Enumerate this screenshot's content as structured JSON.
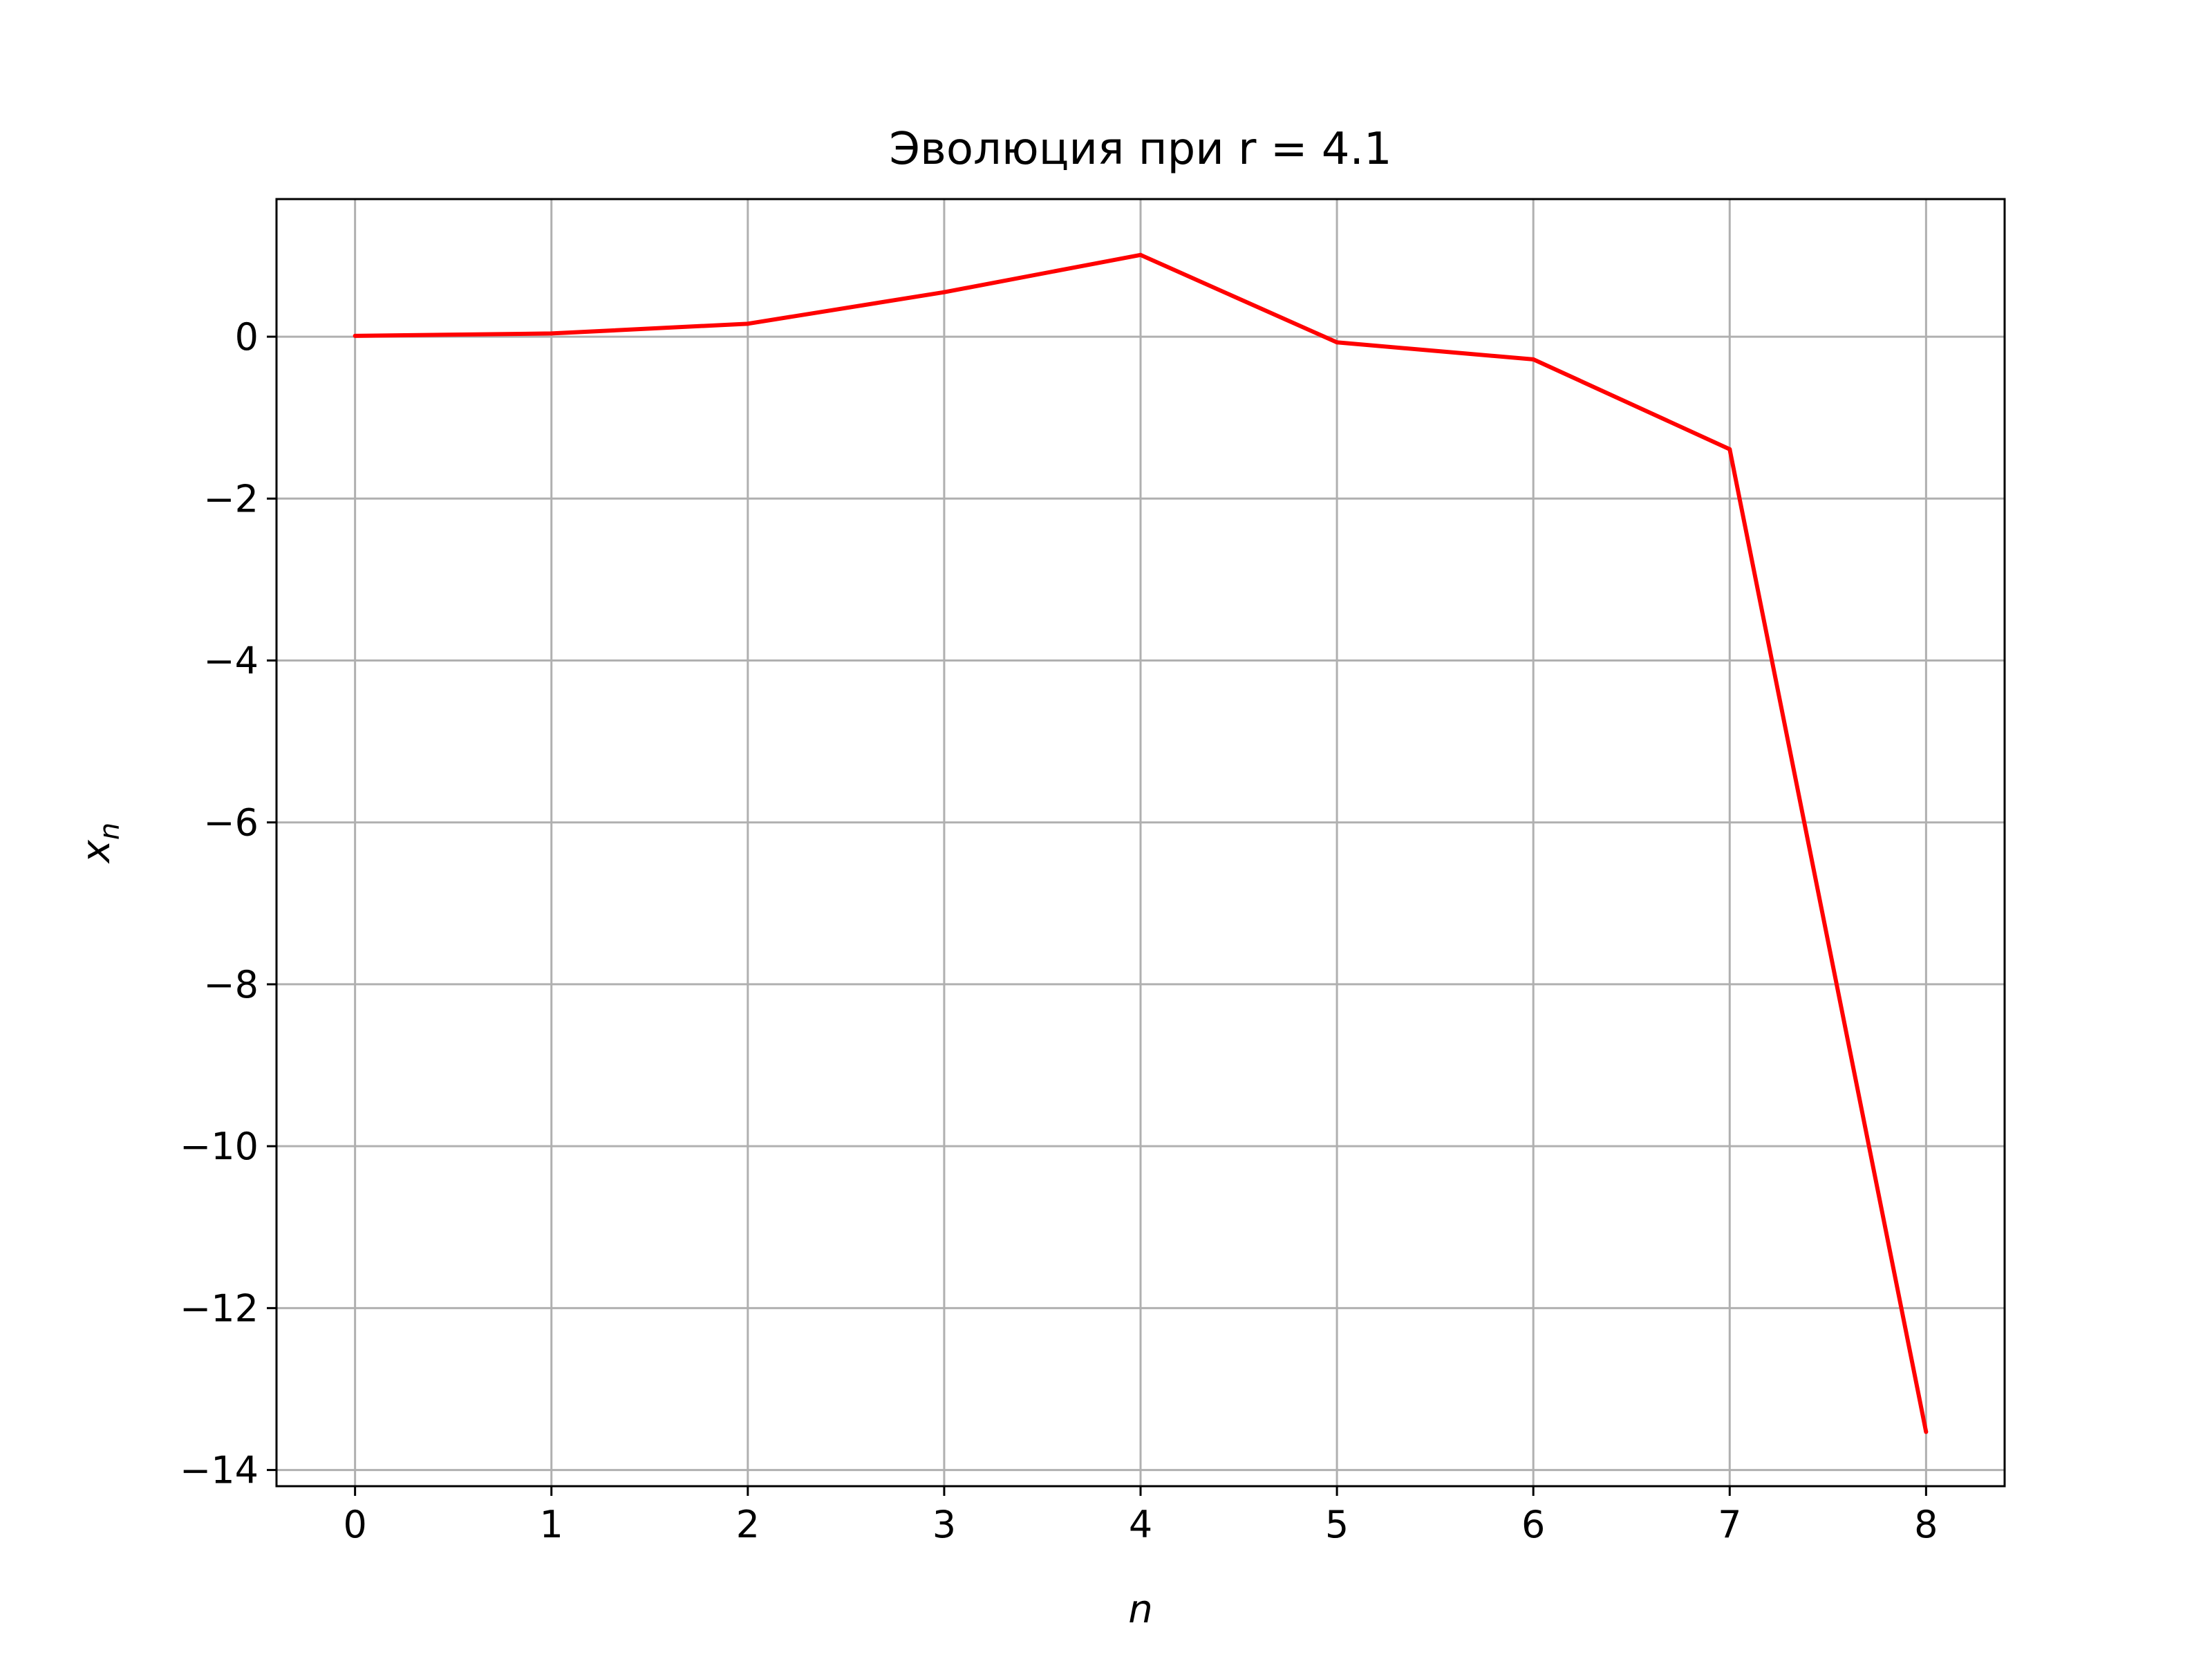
{
  "chart_data": {
    "type": "line",
    "title": "Эволюция при r = 4.1",
    "xlabel": "n",
    "ylabel": "x",
    "ylabel_subscript": "n",
    "x": [
      0,
      1,
      2,
      3,
      4,
      5,
      6,
      7,
      8
    ],
    "series": [
      {
        "color": "#ff0000",
        "values": [
          0.01,
          0.04,
          0.16,
          0.55,
          1.01,
          -0.07,
          -0.28,
          -1.39,
          -13.53
        ]
      }
    ],
    "xlim": [
      -0.4,
      8.4
    ],
    "ylim": [
      -14.2,
      1.7
    ],
    "xticks": [
      {
        "value": 0,
        "label": "0"
      },
      {
        "value": 1,
        "label": "1"
      },
      {
        "value": 2,
        "label": "2"
      },
      {
        "value": 3,
        "label": "3"
      },
      {
        "value": 4,
        "label": "4"
      },
      {
        "value": 5,
        "label": "5"
      },
      {
        "value": 6,
        "label": "6"
      },
      {
        "value": 7,
        "label": "7"
      },
      {
        "value": 8,
        "label": "8"
      }
    ],
    "yticks": [
      {
        "value": 0,
        "label": "0"
      },
      {
        "value": -2,
        "label": "−2"
      },
      {
        "value": -4,
        "label": "−4"
      },
      {
        "value": -6,
        "label": "−6"
      },
      {
        "value": -8,
        "label": "−8"
      },
      {
        "value": -10,
        "label": "−10"
      },
      {
        "value": -12,
        "label": "−12"
      },
      {
        "value": -14,
        "label": "−14"
      }
    ],
    "grid": true,
    "grid_color": "#b0b0b0",
    "axes_color": "#000000"
  }
}
